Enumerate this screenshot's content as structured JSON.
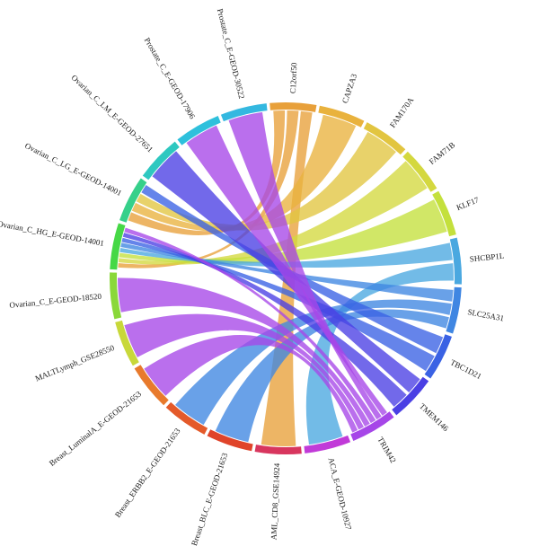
{
  "chart_data": {
    "type": "chord",
    "segments": [
      {
        "name": "C12orf50",
        "color": "#e8a03a"
      },
      {
        "name": "CAPZA3",
        "color": "#e9b23d"
      },
      {
        "name": "FAM170A",
        "color": "#e2c540"
      },
      {
        "name": "FAM71B",
        "color": "#d4d83f"
      },
      {
        "name": "KLF17",
        "color": "#c4e03c"
      },
      {
        "name": "SHCBP1L",
        "color": "#4aa8e0"
      },
      {
        "name": "SLC25A31",
        "color": "#3f86e2"
      },
      {
        "name": "TBC1D21",
        "color": "#3a62e4"
      },
      {
        "name": "TMEM146",
        "color": "#4a3fe4"
      },
      {
        "name": "TRIM42",
        "color": "#a646e8"
      },
      {
        "name": "ACA_E-GEOD-10927",
        "color": "#c13ad8"
      },
      {
        "name": "AML_CD8_GSE14924",
        "color": "#d8365e"
      },
      {
        "name": "Breast_BLC_E-GEOD-21653",
        "color": "#e0442a"
      },
      {
        "name": "Breast_ERBB2_E-GEOD-21653",
        "color": "#e45a2a"
      },
      {
        "name": "Breast_LuminalA_E-GEOD-21653",
        "color": "#e87a2c"
      },
      {
        "name": "MALTLymph_GSE28550",
        "color": "#c8d83a"
      },
      {
        "name": "Ovarian_C_E-GEOD-18520",
        "color": "#8ad83a"
      },
      {
        "name": "Ovarian_C_HG_E-GEOD-14001",
        "color": "#46d846"
      },
      {
        "name": "Ovarian_C_LG_E-GEOD-14001",
        "color": "#36d08a"
      },
      {
        "name": "Ovarian_C_LM_E-GEOD-27651",
        "color": "#2ec8c0"
      },
      {
        "name": "Prostate_C_E-GEOD-17906",
        "color": "#2ec0dc"
      },
      {
        "name": "Prostate_C_E-GEOD-30522",
        "color": "#34b8e0"
      }
    ],
    "connections": [
      {
        "source": "C12orf50",
        "target": "Ovarian_C_LG_E-GEOD-14001",
        "value": 1
      },
      {
        "source": "C12orf50",
        "target": "Ovarian_C_HG_E-GEOD-14001",
        "value": 1
      },
      {
        "source": "C12orf50",
        "target": "AML_CD8_GSE14924",
        "value": 1
      },
      {
        "source": "CAPZA3",
        "target": "Ovarian_C_LG_E-GEOD-14001",
        "value": 1
      },
      {
        "source": "FAM170A",
        "target": "Ovarian_C_LG_E-GEOD-14001",
        "value": 1
      },
      {
        "source": "FAM71B",
        "target": "Ovarian_C_HG_E-GEOD-14001",
        "value": 1
      },
      {
        "source": "KLF17",
        "target": "Ovarian_C_HG_E-GEOD-14001",
        "value": 1
      },
      {
        "source": "SHCBP1L",
        "target": "Ovarian_C_HG_E-GEOD-14001",
        "value": 1
      },
      {
        "source": "SHCBP1L",
        "target": "ACA_E-GEOD-10927",
        "value": 1
      },
      {
        "source": "SLC25A31",
        "target": "Ovarian_C_HG_E-GEOD-14001",
        "value": 1
      },
      {
        "source": "SLC25A31",
        "target": "Breast_ERBB2_E-GEOD-21653",
        "value": 1
      },
      {
        "source": "SLC25A31",
        "target": "Breast_BLC_E-GEOD-21653",
        "value": 1
      },
      {
        "source": "TBC1D21",
        "target": "Ovarian_C_LG_E-GEOD-14001",
        "value": 1
      },
      {
        "source": "TBC1D21",
        "target": "Ovarian_C_HG_E-GEOD-14001",
        "value": 1
      },
      {
        "source": "TMEM146",
        "target": "Ovarian_C_LM_E-GEOD-27651",
        "value": 1
      },
      {
        "source": "TMEM146",
        "target": "Ovarian_C_HG_E-GEOD-14001",
        "value": 1
      },
      {
        "source": "TRIM42",
        "target": "Prostate_C_E-GEOD-17906",
        "value": 1
      },
      {
        "source": "TRIM42",
        "target": "Prostate_C_E-GEOD-30522",
        "value": 1
      },
      {
        "source": "TRIM42",
        "target": "Ovarian_C_HG_E-GEOD-14001",
        "value": 1
      },
      {
        "source": "TRIM42",
        "target": "Ovarian_C_E-GEOD-18520",
        "value": 1
      },
      {
        "source": "TRIM42",
        "target": "MALTLymph_GSE28550",
        "value": 1
      },
      {
        "source": "TRIM42",
        "target": "Breast_LuminalA_E-GEOD-21653",
        "value": 1
      }
    ]
  }
}
